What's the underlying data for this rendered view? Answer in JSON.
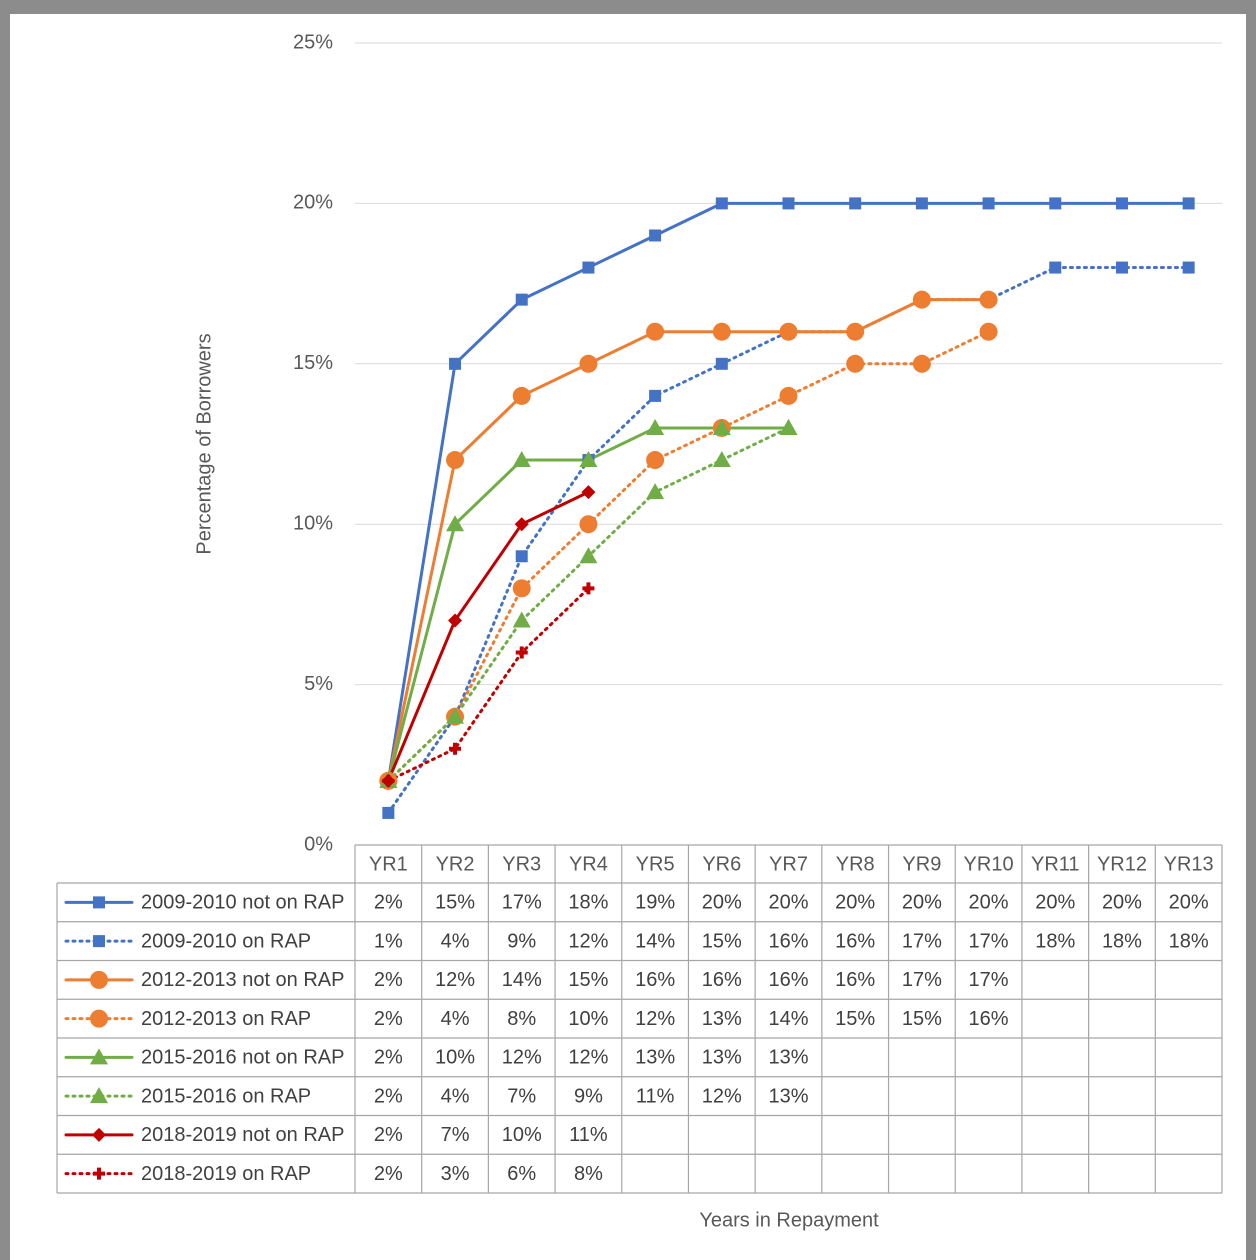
{
  "chart_data": {
    "type": "line",
    "y_label": "Percentage of Borrowers",
    "x_label": "Years in Repayment",
    "categories": [
      "YR1",
      "YR2",
      "YR3",
      "YR4",
      "YR5",
      "YR6",
      "YR7",
      "YR8",
      "YR9",
      "YR10",
      "YR11",
      "YR12",
      "YR13"
    ],
    "ylim": [
      0,
      25
    ],
    "yticks": [
      {
        "value": 0,
        "label": "0%"
      },
      {
        "value": 5,
        "label": "5%"
      },
      {
        "value": 10,
        "label": "10%"
      },
      {
        "value": 15,
        "label": "15%"
      },
      {
        "value": 20,
        "label": "20%"
      },
      {
        "value": 25,
        "label": "25%"
      }
    ],
    "grid": true,
    "series": [
      {
        "name": "2009-2010 not on RAP",
        "color": "#4472c4",
        "dash": "solid",
        "marker": "square",
        "values": [
          2,
          15,
          17,
          18,
          19,
          20,
          20,
          20,
          20,
          20,
          20,
          20,
          20
        ],
        "value_labels": [
          "2%",
          "15%",
          "17%",
          "18%",
          "19%",
          "20%",
          "20%",
          "20%",
          "20%",
          "20%",
          "20%",
          "20%",
          "20%"
        ]
      },
      {
        "name": "2009-2010 on RAP",
        "color": "#4472c4",
        "dash": "dotted",
        "marker": "square",
        "values": [
          1,
          4,
          9,
          12,
          14,
          15,
          16,
          16,
          17,
          17,
          18,
          18,
          18
        ],
        "value_labels": [
          "1%",
          "4%",
          "9%",
          "12%",
          "14%",
          "15%",
          "16%",
          "16%",
          "17%",
          "17%",
          "18%",
          "18%",
          "18%"
        ]
      },
      {
        "name": "2012-2013 not on RAP",
        "color": "#ed7d31",
        "dash": "solid",
        "marker": "circle",
        "values": [
          2,
          12,
          14,
          15,
          16,
          16,
          16,
          16,
          17,
          17,
          null,
          null,
          null
        ],
        "value_labels": [
          "2%",
          "12%",
          "14%",
          "15%",
          "16%",
          "16%",
          "16%",
          "16%",
          "17%",
          "17%",
          null,
          null,
          null
        ]
      },
      {
        "name": "2012-2013 on RAP",
        "color": "#ed7d31",
        "dash": "dotted",
        "marker": "circle",
        "values": [
          2,
          4,
          8,
          10,
          12,
          13,
          14,
          15,
          15,
          16,
          null,
          null,
          null
        ],
        "value_labels": [
          "2%",
          "4%",
          "8%",
          "10%",
          "12%",
          "13%",
          "14%",
          "15%",
          "15%",
          "16%",
          null,
          null,
          null
        ]
      },
      {
        "name": "2015-2016 not on RAP",
        "color": "#70ad47",
        "dash": "solid",
        "marker": "triangle",
        "values": [
          2,
          10,
          12,
          12,
          13,
          13,
          13,
          null,
          null,
          null,
          null,
          null,
          null
        ],
        "value_labels": [
          "2%",
          "10%",
          "12%",
          "12%",
          "13%",
          "13%",
          "13%",
          null,
          null,
          null,
          null,
          null,
          null
        ]
      },
      {
        "name": "2015-2016 on RAP",
        "color": "#70ad47",
        "dash": "dotted",
        "marker": "triangle",
        "values": [
          2,
          4,
          7,
          9,
          11,
          12,
          13,
          null,
          null,
          null,
          null,
          null,
          null
        ],
        "value_labels": [
          "2%",
          "4%",
          "7%",
          "9%",
          "11%",
          "12%",
          "13%",
          null,
          null,
          null,
          null,
          null,
          null
        ]
      },
      {
        "name": "2018-2019 not on RAP",
        "color": "#c00000",
        "dash": "solid",
        "marker": "diamond",
        "values": [
          2,
          7,
          10,
          11,
          null,
          null,
          null,
          null,
          null,
          null,
          null,
          null,
          null
        ],
        "value_labels": [
          "2%",
          "7%",
          "10%",
          "11%",
          null,
          null,
          null,
          null,
          null,
          null,
          null,
          null,
          null
        ]
      },
      {
        "name": "2018-2019 on RAP",
        "color": "#c00000",
        "dash": "dotted",
        "marker": "plus",
        "values": [
          2,
          3,
          6,
          8,
          null,
          null,
          null,
          null,
          null,
          null,
          null,
          null,
          null
        ],
        "value_labels": [
          "2%",
          "3%",
          "6%",
          "8%",
          null,
          null,
          null,
          null,
          null,
          null,
          null,
          null,
          null
        ]
      }
    ]
  }
}
